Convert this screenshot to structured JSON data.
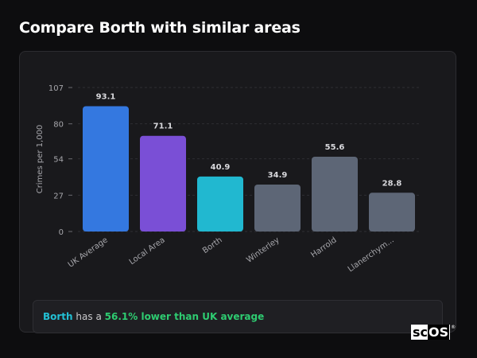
{
  "page": {
    "title": "Compare Borth with similar areas"
  },
  "chart_data": {
    "type": "bar",
    "ylabel": "Crimes per 1,000",
    "ylim": [
      0,
      107
    ],
    "yticks": [
      0,
      27,
      54,
      80,
      107
    ],
    "grid": "dashed-horizontal",
    "categories": [
      "UK Average",
      "Local Area",
      "Borth",
      "Winterley",
      "Harrold",
      "Llanerchym..."
    ],
    "values": [
      93.1,
      71.1,
      40.9,
      34.9,
      55.6,
      28.8
    ],
    "value_labels": [
      "93.1",
      "71.1",
      "40.9",
      "34.9",
      "55.6",
      "28.8"
    ],
    "colors": [
      "#3478e0",
      "#7a4fd6",
      "#21b8d0",
      "#5d6676",
      "#5d6676",
      "#5d6676"
    ]
  },
  "summary": {
    "area": "Borth",
    "mid": "has a",
    "stat": "56.1% lower than UK average"
  },
  "logo": {
    "text_a": "sc",
    "text_b": "OS",
    "mark": "®"
  }
}
